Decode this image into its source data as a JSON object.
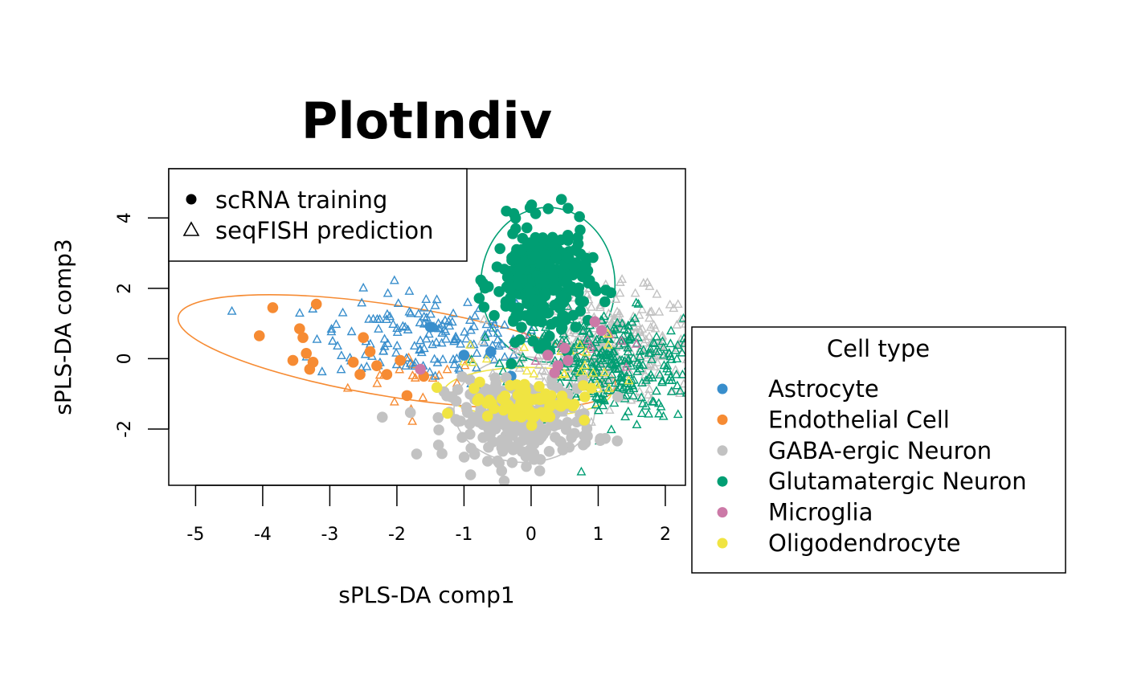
{
  "chart_data": {
    "type": "scatter",
    "title": "PlotIndiv",
    "xlabel": "sPLS-DA comp1",
    "ylabel": "sPLS-DA comp3",
    "xlim": [
      -5.4,
      2.3
    ],
    "ylim": [
      -3.6,
      5.4
    ],
    "x_ticks": [
      -5,
      -4,
      -3,
      -2,
      -1,
      0,
      1,
      2
    ],
    "y_ticks": [
      -2,
      0,
      2,
      4
    ],
    "x_tick_labels": [
      "-5",
      "-4",
      "-3",
      "-2",
      "-1",
      "0",
      "1",
      "2"
    ],
    "y_tick_labels": [
      "-2",
      "0",
      "2",
      "4"
    ],
    "grid": false,
    "shape_legend": {
      "placement": "top-left",
      "items": [
        {
          "label": "scRNA training",
          "shape": "filled-circle"
        },
        {
          "label": "seqFISH prediction",
          "shape": "open-triangle"
        }
      ]
    },
    "color_legend": {
      "title": "Cell type",
      "placement": "right",
      "items": [
        {
          "label": "Astrocyte",
          "color": "#388ECC"
        },
        {
          "label": "Endothelial Cell",
          "color": "#F68B33"
        },
        {
          "label": "GABA-ergic Neuron",
          "color": "#C2C2C2"
        },
        {
          "label": "Glutamatergic Neuron",
          "color": "#009E73"
        },
        {
          "label": "Microglia",
          "color": "#CC79A7"
        },
        {
          "label": "Oligodendrocyte",
          "color": "#F0E442"
        }
      ]
    },
    "series": [
      {
        "color": "#F68B33",
        "ellipse": {
          "cx": -2.0,
          "cy": 0.2,
          "rx": 3.3,
          "ry": 1.3,
          "angle_deg": -9
        },
        "scrna": [
          [
            -4.05,
            0.65
          ],
          [
            -3.85,
            1.45
          ],
          [
            -3.45,
            0.85
          ],
          [
            -3.4,
            0.6
          ],
          [
            -3.55,
            -0.05
          ],
          [
            -3.35,
            0.15
          ],
          [
            -3.25,
            -0.1
          ],
          [
            -3.3,
            -0.3
          ],
          [
            -3.2,
            1.55
          ],
          [
            -2.65,
            -0.1
          ],
          [
            -2.5,
            0.6
          ],
          [
            -2.4,
            0.2
          ],
          [
            -2.3,
            -0.2
          ],
          [
            -2.55,
            -0.45
          ],
          [
            -2.15,
            -0.45
          ],
          [
            -1.95,
            -0.05
          ],
          [
            -1.6,
            -0.5
          ],
          [
            -1.85,
            -1.05
          ]
        ],
        "seqfish": {
          "count": 22,
          "cx": -1.6,
          "cy": -0.6,
          "sx": 0.55,
          "sy": 0.45
        }
      },
      {
        "color": "#388ECC",
        "ellipse": null,
        "scrna": [
          [
            -1.5,
            0.9
          ],
          [
            -1.0,
            0.1
          ],
          [
            -0.6,
            0.2
          ],
          [
            -0.3,
            -0.5
          ]
        ],
        "seqfish": {
          "count": 160,
          "cx": -1.5,
          "cy": 0.6,
          "sx": 0.85,
          "sy": 0.65
        }
      },
      {
        "color": "#C2C2C2",
        "ellipse": {
          "cx": -0.1,
          "cy": -1.45,
          "rx": 1.05,
          "ry": 1.5,
          "angle_deg": 0
        },
        "scrna": {
          "count": 260,
          "cx": -0.15,
          "cy": -1.75,
          "sx": 0.55,
          "sy": 0.55
        },
        "seqfish": {
          "count": 300,
          "cx": 1.15,
          "cy": 0.3,
          "sx": 0.65,
          "sy": 0.8
        }
      },
      {
        "color": "#009E73",
        "ellipse": {
          "cx": 0.25,
          "cy": 2.1,
          "rx": 1.0,
          "ry": 2.2,
          "angle_deg": 0
        },
        "scrna": {
          "count": 300,
          "cx": 0.15,
          "cy": 2.2,
          "sx": 0.35,
          "sy": 0.8
        },
        "seqfish": {
          "count": 320,
          "cx": 1.15,
          "cy": -0.2,
          "sx": 0.7,
          "sy": 0.75
        }
      },
      {
        "color": "#CC79A7",
        "ellipse": null,
        "scrna": [
          [
            -1.65,
            -0.3
          ],
          [
            0.25,
            0.1
          ],
          [
            0.4,
            -0.2
          ],
          [
            0.5,
            0.3
          ],
          [
            0.55,
            -0.05
          ],
          [
            0.35,
            -0.4
          ],
          [
            0.95,
            1.05
          ],
          [
            1.05,
            0.8
          ]
        ],
        "seqfish": {
          "count": 14,
          "cx": 0.7,
          "cy": 0.4,
          "sx": 0.5,
          "sy": 0.5
        }
      },
      {
        "color": "#F0E442",
        "ellipse": {
          "cx": -0.05,
          "cy": -0.95,
          "rx": 1.25,
          "ry": 0.7,
          "angle_deg": 0
        },
        "scrna": {
          "count": 70,
          "cx": -0.05,
          "cy": -1.2,
          "sx": 0.45,
          "sy": 0.3
        },
        "seqfish": {
          "count": 30,
          "cx": 0.3,
          "cy": -0.3,
          "sx": 0.6,
          "sy": 0.5
        }
      }
    ]
  }
}
